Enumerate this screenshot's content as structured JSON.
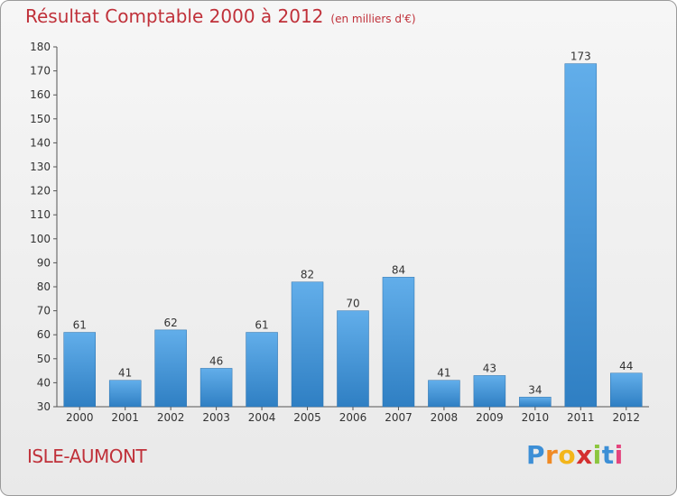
{
  "header": {
    "title": "Résultat Comptable 2000 à 2012",
    "unit": "(en milliers d'€)"
  },
  "footer": {
    "commune": "ISLE-AUMONT",
    "brand": [
      "P",
      "r",
      "o",
      "x",
      "i",
      "t",
      "i"
    ],
    "brand_colors": [
      "#3d8fd6",
      "#f08a24",
      "#f3b51a",
      "#d42f2f",
      "#8cc63e",
      "#3d8fd6",
      "#e4447d"
    ]
  },
  "chart_data": {
    "type": "bar",
    "categories": [
      "2000",
      "2001",
      "2002",
      "2003",
      "2004",
      "2005",
      "2006",
      "2007",
      "2008",
      "2009",
      "2010",
      "2011",
      "2012"
    ],
    "values": [
      61,
      41,
      62,
      46,
      61,
      82,
      70,
      84,
      41,
      43,
      34,
      173,
      44
    ],
    "ylim": [
      30,
      180
    ],
    "yticks": [
      30,
      40,
      50,
      60,
      70,
      80,
      90,
      100,
      110,
      120,
      130,
      140,
      150,
      160,
      170,
      180
    ],
    "bar_color_top": "#62aeea",
    "bar_color_bottom": "#2f7fc3",
    "grid": false
  }
}
